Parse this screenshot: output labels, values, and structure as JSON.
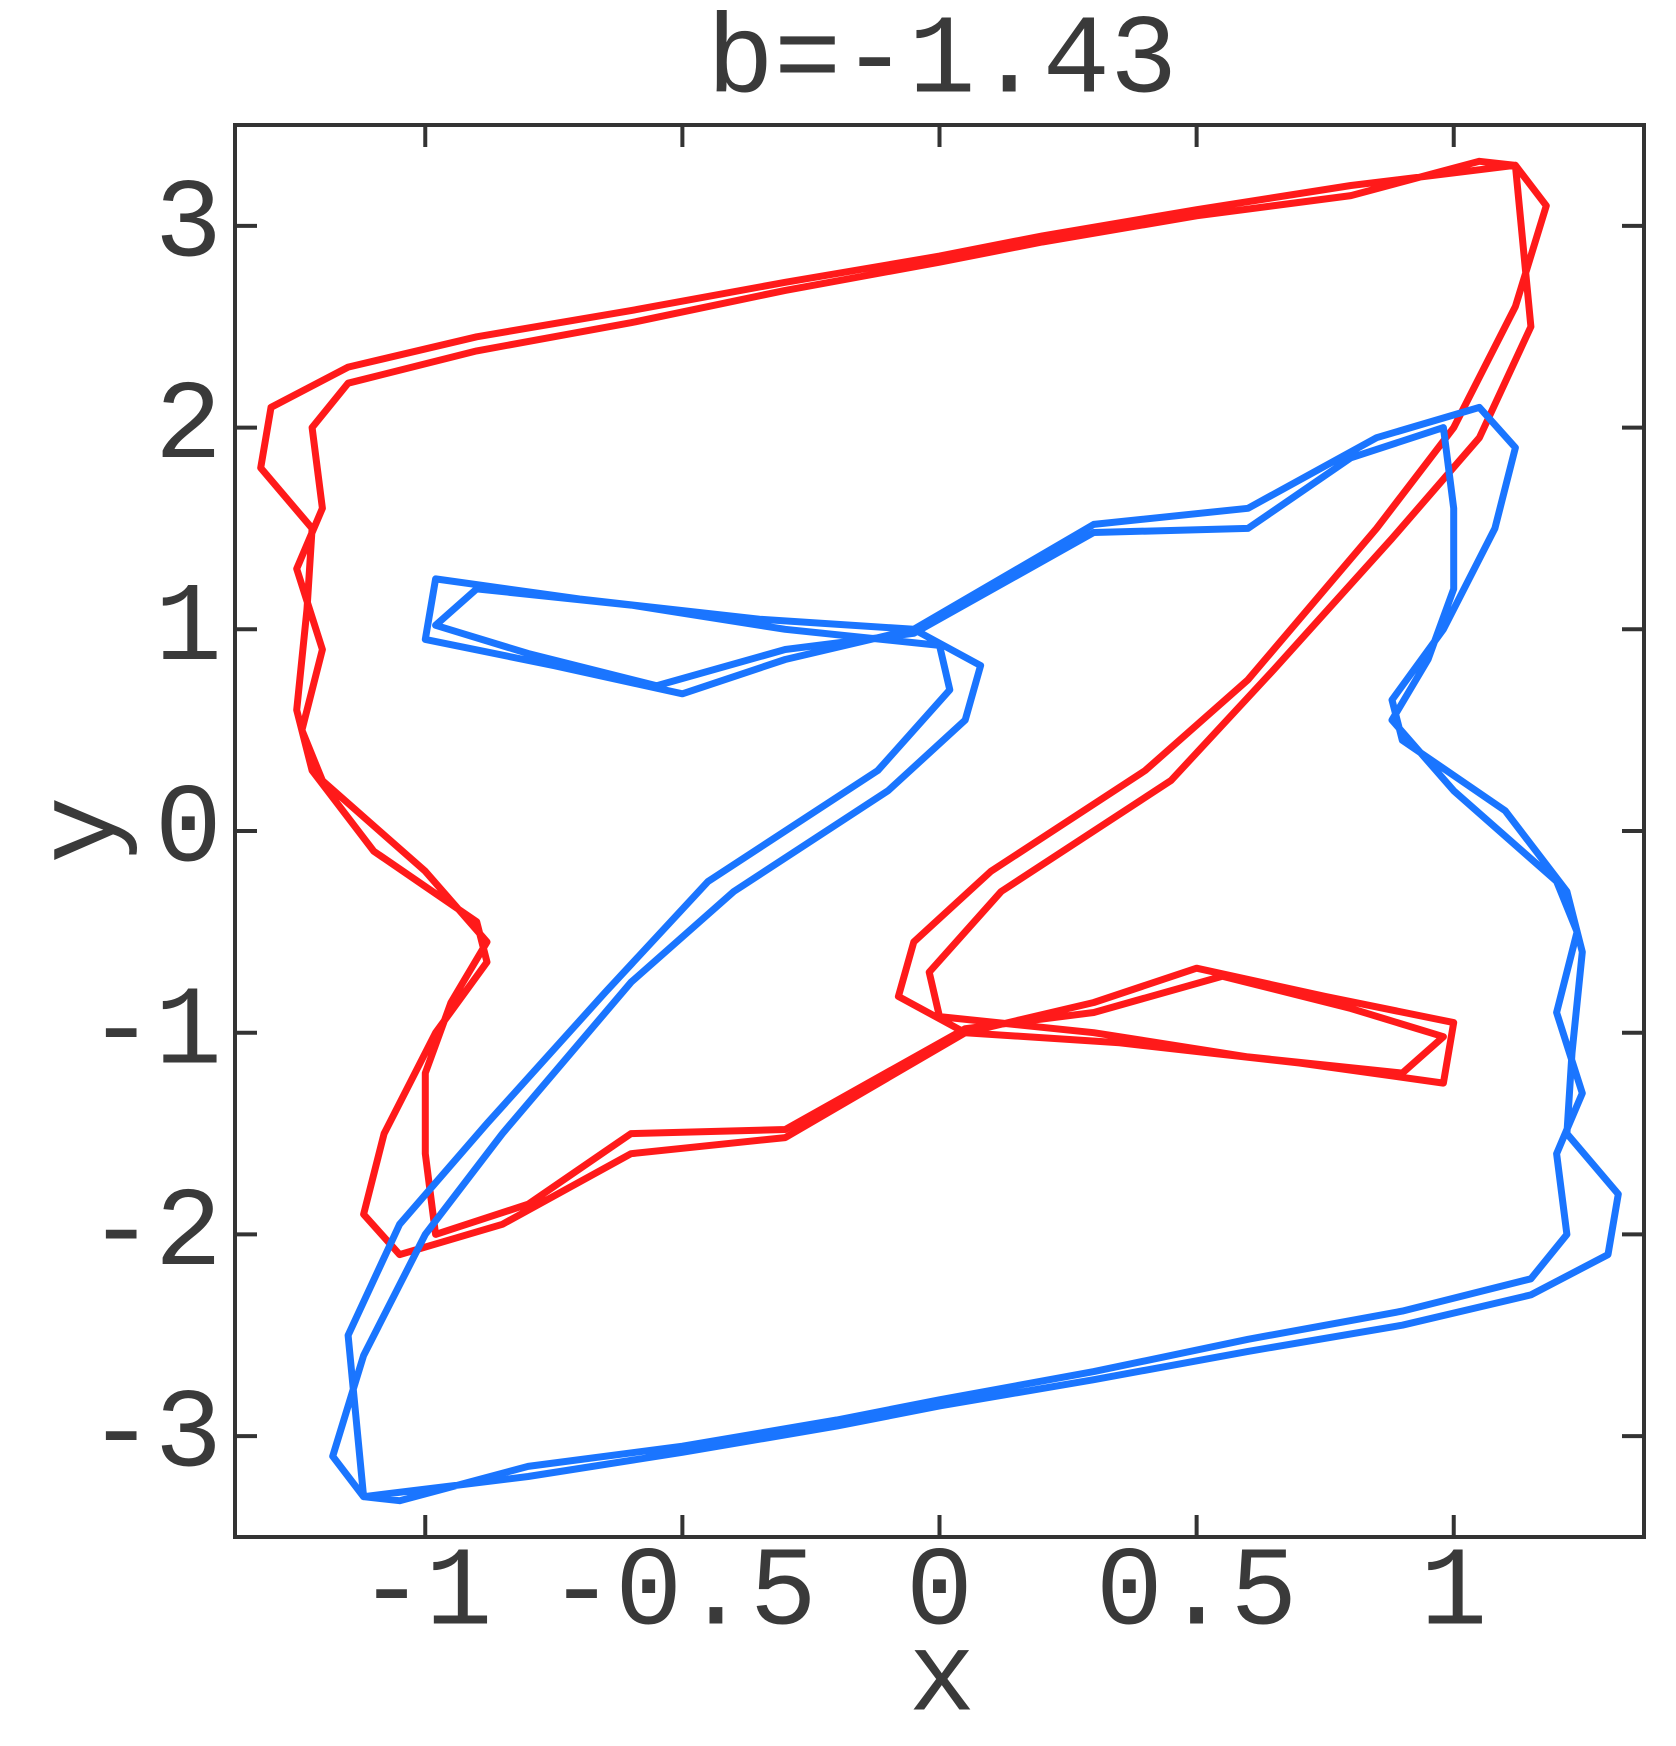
{
  "chart_data": {
    "type": "line",
    "title": "b=-1.43",
    "x_label": "x",
    "y_label": "y",
    "xlim": [
      -1.37,
      1.37
    ],
    "ylim": [
      -3.5,
      3.5
    ],
    "xticks": [
      -1,
      -0.5,
      0,
      0.5,
      1
    ],
    "yticks": [
      -3,
      -2,
      -1,
      0,
      1,
      2,
      3
    ],
    "series": [
      {
        "color": "#ff1a1a",
        "x": [
          1.12,
          0.8,
          0.5,
          0.2,
          0,
          -0.3,
          -0.6,
          -0.9,
          -1.15,
          -1.3,
          -1.32,
          -1.22,
          -1.23,
          -1.25,
          -1.22,
          -1.1,
          -0.9,
          -0.88,
          -0.98,
          -1.08,
          -1.12,
          -1.05,
          -0.85,
          -0.6,
          -0.3,
          0.05,
          0.3,
          0.5,
          0.75,
          1.0,
          0.98,
          0.7,
          0.35,
          0.05,
          -0.08,
          -0.05,
          0.1,
          0.4,
          0.6,
          0.85,
          1.0,
          1.12,
          1.18,
          1.12,
          1.05,
          0.8,
          0.5,
          0.2,
          0,
          -0.3,
          -0.6,
          -0.9,
          -1.15,
          -1.22,
          -1.2,
          -1.25,
          -1.2,
          -1.24,
          -1.2,
          -1.0,
          -0.88,
          -0.95,
          -1.0,
          -1.0,
          -0.98,
          -0.8,
          -0.6,
          -0.3,
          0.05,
          0.3,
          0.55,
          0.8,
          0.98,
          0.9,
          0.6,
          0.3,
          0.0,
          -0.02,
          0.12,
          0.45,
          0.65,
          0.88,
          1.05,
          1.15,
          1.12
        ],
        "values": [
          3.3,
          3.2,
          3.08,
          2.95,
          2.85,
          2.72,
          2.58,
          2.45,
          2.3,
          2.1,
          1.8,
          1.5,
          1.1,
          0.6,
          0.3,
          -0.1,
          -0.45,
          -0.65,
          -1.0,
          -1.5,
          -1.9,
          -2.1,
          -1.95,
          -1.6,
          -1.52,
          -1.0,
          -0.85,
          -0.68,
          -0.82,
          -0.95,
          -1.25,
          -1.15,
          -1.05,
          -1.0,
          -0.82,
          -0.55,
          -0.2,
          0.3,
          0.75,
          1.5,
          2.0,
          2.6,
          3.1,
          3.3,
          3.32,
          3.15,
          3.05,
          2.92,
          2.82,
          2.68,
          2.52,
          2.38,
          2.22,
          2.0,
          1.6,
          1.3,
          0.9,
          0.5,
          0.25,
          -0.2,
          -0.55,
          -0.85,
          -1.2,
          -1.6,
          -2.0,
          -1.85,
          -1.5,
          -1.48,
          -0.98,
          -0.9,
          -0.72,
          -0.88,
          -1.02,
          -1.2,
          -1.12,
          -1.0,
          -0.92,
          -0.7,
          -0.3,
          0.25,
          0.8,
          1.45,
          1.95,
          2.5,
          3.3
        ]
      },
      {
        "color": "#1a75ff",
        "x": [
          -1.12,
          -0.8,
          -0.5,
          -0.2,
          0,
          0.3,
          0.6,
          0.9,
          1.15,
          1.3,
          1.32,
          1.22,
          1.23,
          1.25,
          1.22,
          1.1,
          0.9,
          0.88,
          0.98,
          1.08,
          1.12,
          1.05,
          0.85,
          0.6,
          0.3,
          -0.05,
          -0.3,
          -0.5,
          -0.75,
          -1.0,
          -0.98,
          -0.7,
          -0.35,
          -0.05,
          0.08,
          0.05,
          -0.1,
          -0.4,
          -0.6,
          -0.85,
          -1.0,
          -1.12,
          -1.18,
          -1.12,
          -1.05,
          -0.8,
          -0.5,
          -0.2,
          0,
          0.3,
          0.6,
          0.9,
          1.15,
          1.22,
          1.2,
          1.25,
          1.2,
          1.24,
          1.2,
          1.0,
          0.88,
          0.95,
          1.0,
          1.0,
          0.98,
          0.8,
          0.6,
          0.3,
          -0.05,
          -0.3,
          -0.55,
          -0.8,
          -0.98,
          -0.9,
          -0.6,
          -0.3,
          0.0,
          0.02,
          -0.12,
          -0.45,
          -0.65,
          -0.88,
          -1.05,
          -1.15,
          -1.12
        ],
        "values": [
          -3.3,
          -3.2,
          -3.08,
          -2.95,
          -2.85,
          -2.72,
          -2.58,
          -2.45,
          -2.3,
          -2.1,
          -1.8,
          -1.5,
          -1.1,
          -0.6,
          -0.3,
          0.1,
          0.45,
          0.65,
          1.0,
          1.5,
          1.9,
          2.1,
          1.95,
          1.6,
          1.52,
          1.0,
          0.85,
          0.68,
          0.82,
          0.95,
          1.25,
          1.15,
          1.05,
          1.0,
          0.82,
          0.55,
          0.2,
          -0.3,
          -0.75,
          -1.5,
          -2.0,
          -2.6,
          -3.1,
          -3.3,
          -3.32,
          -3.15,
          -3.05,
          -2.92,
          -2.82,
          -2.68,
          -2.52,
          -2.38,
          -2.22,
          -2.0,
          -1.6,
          -1.3,
          -0.9,
          -0.5,
          -0.25,
          0.2,
          0.55,
          0.85,
          1.2,
          1.6,
          2.0,
          1.85,
          1.5,
          1.48,
          0.98,
          0.9,
          0.72,
          0.88,
          1.02,
          1.2,
          1.12,
          1.0,
          0.92,
          0.7,
          0.3,
          -0.25,
          -0.8,
          -1.45,
          -1.95,
          -2.5,
          -3.3
        ]
      }
    ]
  }
}
